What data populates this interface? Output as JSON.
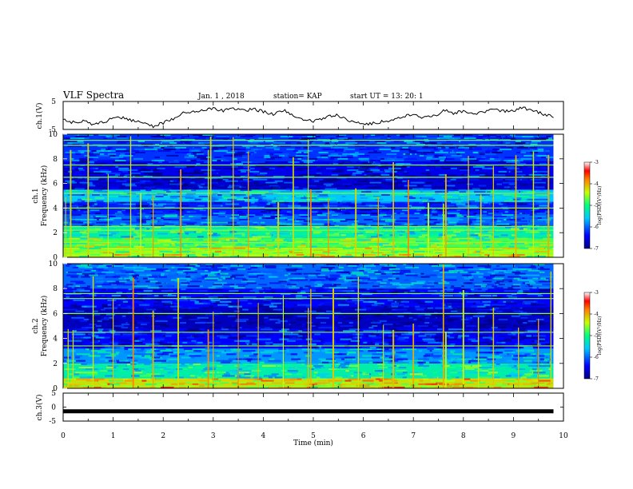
{
  "header": {
    "title": "VLF Spectra",
    "date": "Jan. 1 , 2018",
    "station": "station= KAP",
    "start_ut": "start  UT =   13: 20: 1"
  },
  "chart_data": [
    {
      "type": "line",
      "panel": "ch1-waveform",
      "ylabel": "ch.1(V)",
      "ylim": [
        -5,
        5
      ],
      "yticks": [
        "5",
        "-5"
      ],
      "xlim": [
        0,
        9.8
      ],
      "x_unit": "min",
      "note": "approximate sampled trace",
      "x": [
        0,
        0.2,
        0.4,
        0.6,
        0.8,
        1.0,
        1.2,
        1.4,
        1.6,
        1.8,
        2.0,
        2.2,
        2.4,
        2.6,
        2.8,
        3.0,
        3.2,
        3.4,
        3.6,
        3.8,
        4.0,
        4.2,
        4.4,
        4.6,
        4.8,
        5.0,
        5.2,
        5.4,
        5.6,
        5.8,
        6.0,
        6.2,
        6.4,
        6.6,
        6.8,
        7.0,
        7.2,
        7.4,
        7.6,
        7.8,
        8.0,
        8.2,
        8.4,
        8.6,
        8.8,
        9.0,
        9.2,
        9.4,
        9.6,
        9.8
      ],
      "values": [
        -1.5,
        -2.5,
        -1.8,
        -3.2,
        -2.4,
        -1.0,
        -0.6,
        -1.8,
        -3.0,
        -3.8,
        -2.6,
        -1.4,
        0.8,
        1.6,
        2.0,
        2.4,
        1.8,
        2.2,
        1.6,
        2.4,
        1.4,
        0.4,
        1.8,
        0.2,
        -1.2,
        -2.2,
        -1.4,
        0.2,
        -0.6,
        -2.6,
        -3.0,
        -2.8,
        -2.2,
        -1.6,
        -0.2,
        0.6,
        -0.8,
        -0.4,
        1.8,
        0.8,
        1.4,
        0.4,
        1.2,
        2.0,
        1.6,
        1.8,
        2.8,
        1.6,
        0.6,
        -0.8
      ]
    },
    {
      "type": "heatmap",
      "panel": "ch1-spectrogram",
      "ylabel_top": "ch.1",
      "ylabel": "Frequency (kHz)",
      "ylim": [
        0,
        10
      ],
      "yticks": [
        "0",
        "2",
        "4",
        "6",
        "8",
        "10"
      ],
      "xlim": [
        0,
        9.8
      ],
      "colorbar": {
        "label": "log(PSD)(V²/Hz)",
        "range": [
          -7,
          -3
        ],
        "ticks": [
          "-3",
          "-4",
          "-5",
          "-6",
          "-7"
        ]
      },
      "bands_khz": [
        {
          "from": 0.0,
          "to": 0.8,
          "level": -4.5
        },
        {
          "from": 0.8,
          "to": 1.6,
          "level": -4.8
        },
        {
          "from": 1.6,
          "to": 2.5,
          "level": -5.2
        },
        {
          "from": 2.5,
          "to": 3.5,
          "level": -6.0
        },
        {
          "from": 3.5,
          "to": 4.5,
          "level": -6.3
        },
        {
          "from": 4.5,
          "to": 5.5,
          "level": -5.6
        },
        {
          "from": 5.5,
          "to": 6.5,
          "level": -6.6
        },
        {
          "from": 6.5,
          "to": 7.8,
          "level": -6.5
        },
        {
          "from": 7.8,
          "to": 10.0,
          "level": -6.2
        }
      ],
      "lines_khz": [
        0.3,
        0.6,
        1.2,
        2.2,
        2.5,
        4.0,
        5.2,
        6.5,
        7.5,
        9.1,
        9.5
      ],
      "bursts_min": [
        0.05,
        0.15,
        0.5,
        0.9,
        1.35,
        1.55,
        1.8,
        2.35,
        2.9,
        2.95,
        3.4,
        3.7,
        4.3,
        4.6,
        4.9,
        4.95,
        5.3,
        5.85,
        6.3,
        6.6,
        6.9,
        7.3,
        7.6,
        7.65,
        8.1,
        8.35,
        8.6,
        9.05,
        9.4,
        9.7
      ]
    },
    {
      "type": "heatmap",
      "panel": "ch2-spectrogram",
      "ylabel_top": "ch.2",
      "ylabel": "Frequency (kHz)",
      "ylim": [
        0,
        10
      ],
      "yticks": [
        "0",
        "2",
        "4",
        "6",
        "8",
        "10"
      ],
      "xlim": [
        0,
        9.8
      ],
      "colorbar": {
        "label": "log(PSD)(V²/Hz)",
        "range": [
          -7,
          -3
        ],
        "ticks": [
          "-3",
          "-4",
          "-5",
          "-6",
          "-7"
        ]
      },
      "bands_khz": [
        {
          "from": 0.0,
          "to": 0.8,
          "level": -4.2
        },
        {
          "from": 0.8,
          "to": 2.0,
          "level": -5.2
        },
        {
          "from": 2.0,
          "to": 3.2,
          "level": -5.8
        },
        {
          "from": 3.2,
          "to": 4.8,
          "level": -6.4
        },
        {
          "from": 4.8,
          "to": 6.5,
          "level": -6.7
        },
        {
          "from": 6.5,
          "to": 8.0,
          "level": -6.4
        },
        {
          "from": 8.0,
          "to": 10.0,
          "level": -6.0
        }
      ],
      "lines_khz": [
        0.2,
        0.5,
        3.4,
        4.5,
        6.0,
        7.2,
        7.6
      ],
      "bursts_min": [
        0.1,
        0.2,
        0.6,
        1.0,
        1.4,
        1.8,
        2.3,
        2.9,
        3.0,
        3.5,
        3.9,
        4.4,
        4.9,
        4.95,
        5.4,
        5.9,
        6.4,
        6.6,
        7.0,
        7.6,
        7.65,
        8.0,
        8.3,
        8.6,
        9.1,
        9.5,
        9.75
      ]
    },
    {
      "type": "line",
      "panel": "ch3-waveform",
      "ylabel": "ch.3(V)",
      "ylim": [
        -5,
        5
      ],
      "yticks": [
        "5",
        "0",
        "-5"
      ],
      "xlim": [
        0,
        9.8
      ],
      "x": [
        0,
        9.8
      ],
      "values": [
        -1.5,
        -1.5
      ]
    }
  ],
  "xaxis": {
    "label": "Time  (min)",
    "range": [
      0,
      10
    ],
    "ticks": [
      "0",
      "1",
      "2",
      "3",
      "4",
      "5",
      "6",
      "7",
      "8",
      "9",
      "10"
    ]
  }
}
